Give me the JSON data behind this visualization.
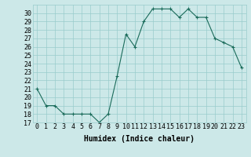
{
  "x": [
    0,
    1,
    2,
    3,
    4,
    5,
    6,
    7,
    8,
    9,
    10,
    11,
    12,
    13,
    14,
    15,
    16,
    17,
    18,
    19,
    20,
    21,
    22,
    23
  ],
  "y": [
    21,
    19,
    19,
    18,
    18,
    18,
    18,
    17,
    18,
    22.5,
    27.5,
    26,
    29,
    30.5,
    30.5,
    30.5,
    29.5,
    30.5,
    29.5,
    29.5,
    27,
    26.5,
    26,
    23.5
  ],
  "line_color": "#1a6b5a",
  "marker": "+",
  "bg_color": "#cce8e8",
  "grid_color": "#99cccc",
  "xlabel": "Humidex (Indice chaleur)",
  "ylim": [
    17,
    31
  ],
  "xlim": [
    -0.5,
    23.5
  ],
  "yticks": [
    17,
    18,
    19,
    20,
    21,
    22,
    23,
    24,
    25,
    26,
    27,
    28,
    29,
    30
  ],
  "xticks": [
    0,
    1,
    2,
    3,
    4,
    5,
    6,
    7,
    8,
    9,
    10,
    11,
    12,
    13,
    14,
    15,
    16,
    17,
    18,
    19,
    20,
    21,
    22,
    23
  ],
  "xlabel_fontsize": 7,
  "tick_fontsize": 6
}
